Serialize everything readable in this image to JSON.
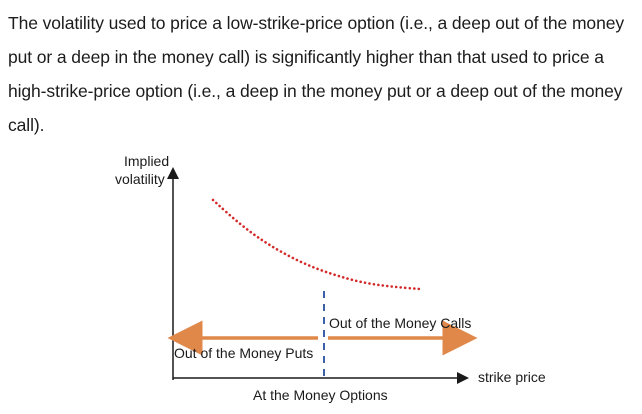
{
  "paragraph": {
    "text": "The volatility used to price a low-strike-price option (i.e., a deep out of the money put or a deep in the money call) is significantly higher than that used to price a high-strike-price option (i.e., a deep in the money put or a deep out of the money call)."
  },
  "chart_data": {
    "type": "line",
    "title": "",
    "xlabel": "strike price",
    "ylabel": "Implied volatility",
    "ylabel_lines": [
      "Implied",
      "volatility"
    ],
    "grid": false,
    "series": [
      {
        "style": "dotted",
        "color": "#d42a2a",
        "x": [
          0.0,
          0.15,
          0.3,
          0.45,
          0.6,
          0.75,
          0.9,
          1.05,
          1.2
        ],
        "y": [
          1.0,
          0.78,
          0.6,
          0.46,
          0.35,
          0.27,
          0.21,
          0.18,
          0.16
        ]
      }
    ],
    "annotations": {
      "atm_line_label": "At the Money Options",
      "right_arrow_label": "Out of the Money Calls",
      "left_arrow_label": "Out of the Money Puts",
      "arrow_color": "#e0884a",
      "atm_line_color": "#3b5fa8"
    }
  }
}
